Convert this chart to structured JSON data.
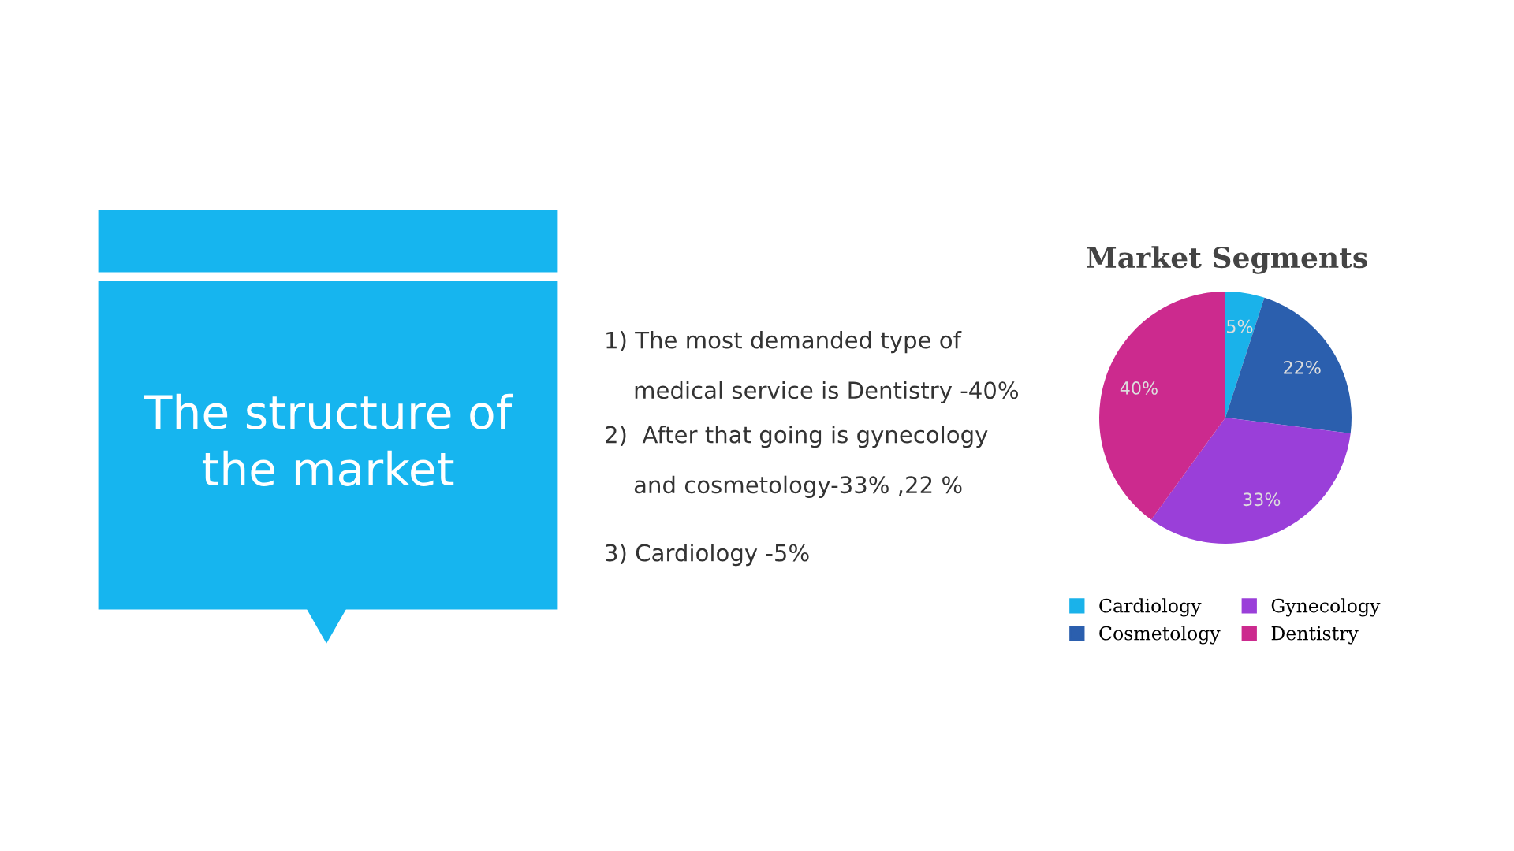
{
  "chart_data": {
    "type": "pie",
    "title": "Market Segments",
    "categories": [
      "Cardiology",
      "Cosmetology",
      "Gynecology",
      "Dentistry"
    ],
    "values": [
      5,
      22,
      33,
      40
    ],
    "colors": [
      "#1ab2ea",
      "#2b5fae",
      "#9a3fd9",
      "#cc2a8e"
    ],
    "value_labels": [
      "5%",
      "22%",
      "33%",
      "40%"
    ],
    "legend": "bottom",
    "annotations": [
      "The structure of\nthe market",
      "1) The most demanded type of\n    medical service is Dentistry -40%",
      "2)  After that going is gynecology\n    and cosmetology-33% ,22 %",
      "3) Cardiology -5%"
    ]
  }
}
